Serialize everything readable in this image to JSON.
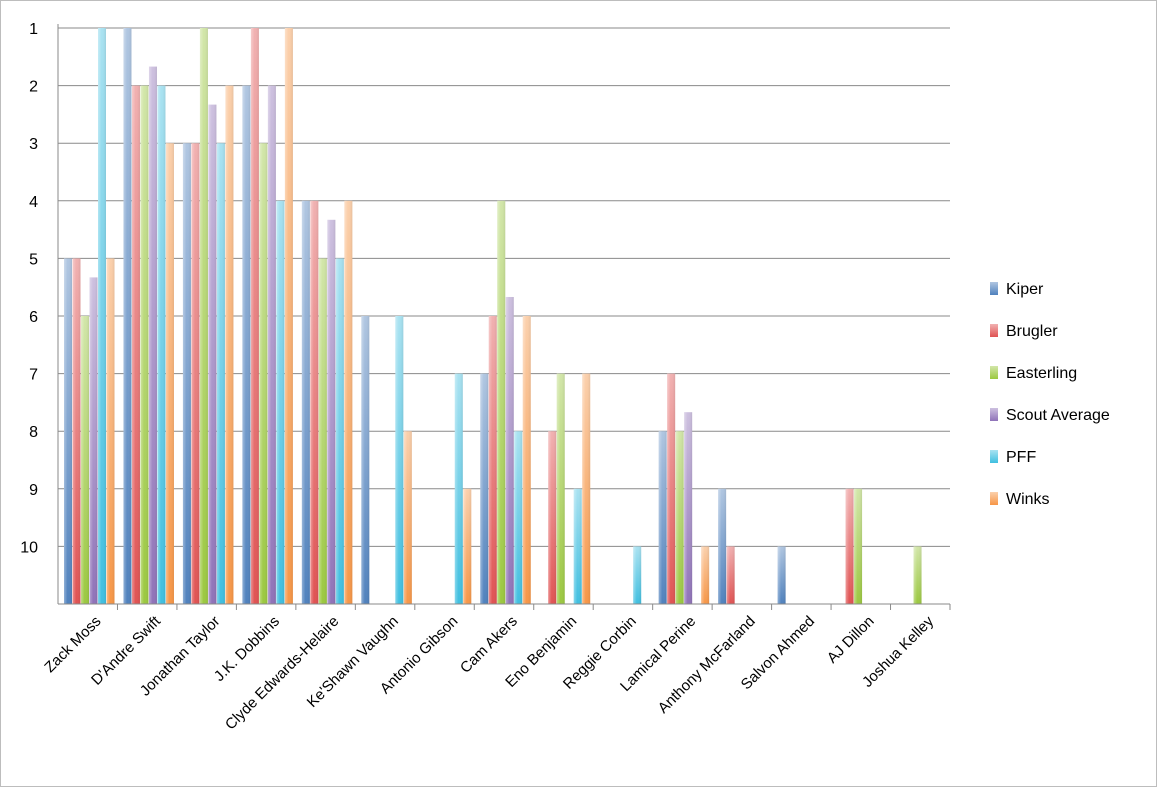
{
  "chart_data": {
    "type": "bar",
    "title": "",
    "xlabel": "",
    "ylabel": "",
    "y_axis": {
      "range": [
        0,
        10
      ],
      "reversed": true,
      "ticks": [
        "1",
        "2",
        "3",
        "4",
        "5",
        "6",
        "7",
        "8",
        "9",
        "10"
      ]
    },
    "grid": true,
    "legend_position": "right",
    "categories": [
      "Zack Moss",
      "D'Andre Swift",
      "Jonathan Taylor",
      "J.K. Dobbins",
      "Clyde Edwards-Helaire",
      "Ke'Shawn Vaughn",
      "Antonio Gibson",
      "Cam Akers",
      "Eno Benjamin",
      "Reggie Corbin",
      "Lamical Perine",
      "Anthony McFarland",
      "Salvon Ahmed",
      "AJ Dillon",
      "Joshua Kelley"
    ],
    "series": [
      {
        "name": "Kiper",
        "color": "#4f81bd",
        "values": [
          5,
          1,
          3,
          2,
          4,
          6,
          null,
          7,
          null,
          null,
          8,
          9,
          10,
          null,
          null
        ]
      },
      {
        "name": "Brugler",
        "color": "#e05252",
        "values": [
          5,
          2,
          3,
          1,
          4,
          null,
          null,
          6,
          8,
          null,
          7,
          10,
          null,
          9,
          null
        ]
      },
      {
        "name": "Easterling",
        "color": "#9bc83f",
        "values": [
          6,
          2,
          1,
          3,
          5,
          null,
          null,
          4,
          7,
          null,
          8,
          null,
          null,
          9,
          10
        ]
      },
      {
        "name": "Scout Average",
        "color": "#8f72b8",
        "values": [
          5.33,
          1.67,
          2.33,
          2,
          4.33,
          null,
          null,
          5.67,
          null,
          null,
          7.67,
          null,
          null,
          null,
          null
        ]
      },
      {
        "name": "PFF",
        "color": "#3fbfe0",
        "values": [
          1,
          2,
          3,
          4,
          5,
          6,
          7,
          8,
          9,
          10,
          null,
          null,
          null,
          null,
          null
        ]
      },
      {
        "name": "Winks",
        "color": "#f79646",
        "values": [
          5,
          3,
          2,
          1,
          4,
          8,
          9,
          6,
          7,
          null,
          10,
          null,
          null,
          null,
          null
        ]
      }
    ]
  }
}
